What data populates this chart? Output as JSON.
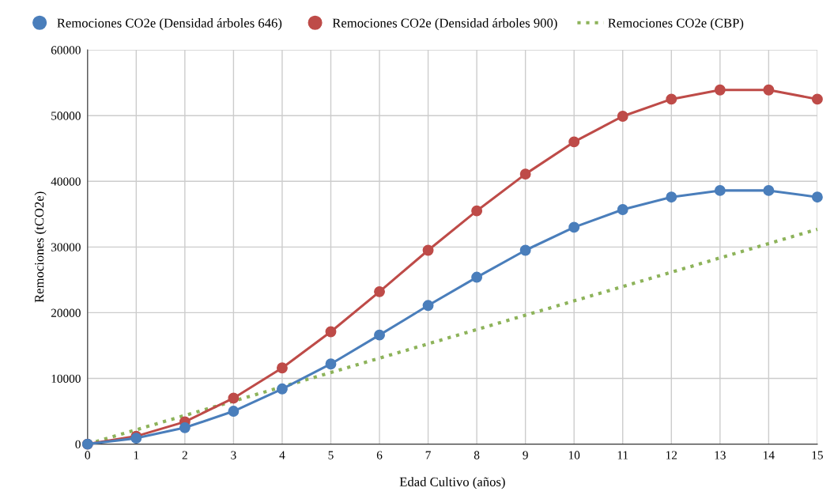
{
  "chart_data": {
    "type": "line",
    "xlabel": "Edad Cultivo (años)",
    "ylabel": "Remociones (tCO2e)",
    "x": [
      0,
      1,
      2,
      3,
      4,
      5,
      6,
      7,
      8,
      9,
      10,
      11,
      12,
      13,
      14,
      15
    ],
    "xlim": [
      0,
      15
    ],
    "xticks": [
      0,
      1,
      2,
      3,
      4,
      5,
      6,
      7,
      8,
      9,
      10,
      11,
      12,
      13,
      14,
      15
    ],
    "ylim": [
      0,
      60000
    ],
    "yticks": [
      0,
      10000,
      20000,
      30000,
      40000,
      50000,
      60000
    ],
    "grid": true,
    "legend": "top",
    "series": [
      {
        "name": "Remociones CO2e (Densidad árboles 646)",
        "color": "#4a7ebb",
        "marker": "circle",
        "line_style": "solid",
        "values": [
          0,
          900,
          2500,
          5000,
          8400,
          12200,
          16600,
          21100,
          25400,
          29500,
          33000,
          35700,
          37600,
          38600,
          38600,
          37600
        ]
      },
      {
        "name": "Remociones CO2e (Densidad árboles 900)",
        "color": "#be4b48",
        "marker": "circle",
        "line_style": "solid",
        "values": [
          0,
          1200,
          3400,
          7000,
          11600,
          17100,
          23200,
          29500,
          35500,
          41100,
          46000,
          49900,
          52500,
          53900,
          53900,
          52500
        ]
      },
      {
        "name": "Remociones CO2e (CBP)",
        "color": "#8db35a",
        "marker": "none",
        "line_style": "dotted",
        "x": [
          0,
          15
        ],
        "values": [
          0,
          32700
        ]
      }
    ]
  }
}
